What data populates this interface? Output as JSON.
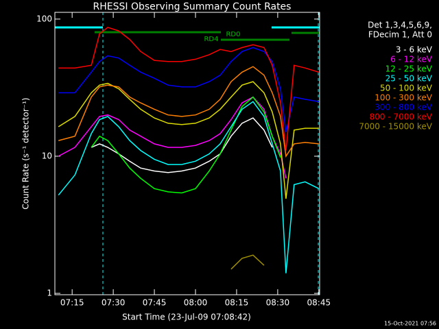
{
  "chart_data": {
    "type": "line",
    "title": "RHESSI Observing Summary Count Rates",
    "xlabel": "Start Time (23-Jul-09 07:08:42)",
    "ylabel": "Count Rate (s⁻¹ detector⁻¹)",
    "legend_header": [
      "Det 1,3,4,5,6,9,",
      "FDecim 1, Att 0"
    ],
    "footer": "15-Oct-2021 07:56",
    "annotations": [
      "RD0",
      "RD4"
    ],
    "log_y": true,
    "legend": "right",
    "x": [
      430,
      436,
      442,
      445,
      448,
      452,
      456,
      460,
      465,
      470,
      475,
      480,
      485,
      489,
      493,
      497,
      501,
      505,
      508,
      511,
      513,
      516,
      520,
      525
    ],
    "xlim": [
      428.7,
      525.3
    ],
    "xticks": [
      {
        "value": 435,
        "label": "07:15"
      },
      {
        "value": 450,
        "label": "07:30"
      },
      {
        "value": 465,
        "label": "07:45"
      },
      {
        "value": 480,
        "label": "08:00"
      },
      {
        "value": 495,
        "label": "08:15"
      },
      {
        "value": 510,
        "label": "08:30"
      },
      {
        "value": 525,
        "label": "08:45"
      }
    ],
    "ylim": [
      0.977,
      112
    ],
    "yticks": [
      1,
      10,
      100
    ],
    "series": [
      {
        "name": "3 - 6 keV",
        "color": "#ffffff",
        "values": [
          null,
          null,
          11.6,
          12.3,
          11.6,
          10.4,
          9.2,
          8.2,
          7.8,
          7.6,
          7.8,
          8.2,
          9.2,
          10.4,
          14,
          17.4,
          19,
          15.5,
          11.6,
          null,
          null,
          null,
          null,
          null
        ]
      },
      {
        "name": "6 - 12 keV",
        "color": "#ff00ff",
        "values": [
          10,
          11.6,
          16.4,
          19.5,
          20,
          18.5,
          15.5,
          14,
          12.3,
          11.6,
          11.6,
          12,
          13,
          14.6,
          18.5,
          24.5,
          27,
          22,
          14,
          10.4,
          6.9,
          null,
          null,
          null
        ]
      },
      {
        "name": "12 - 25 keV",
        "color": "#00ff00",
        "values": [
          null,
          null,
          11.6,
          14,
          13,
          10.4,
          8.2,
          6.9,
          5.8,
          5.5,
          5.4,
          5.8,
          7.8,
          10.4,
          15.5,
          23,
          27,
          21,
          14,
          9.8,
          null,
          null,
          null,
          null
        ]
      },
      {
        "name": "25 - 50 keV",
        "color": "#00ffff",
        "values": [
          5.2,
          7.3,
          14.6,
          18.5,
          19.5,
          16.4,
          13,
          11,
          9.5,
          8.7,
          8.7,
          9.2,
          10.4,
          12.3,
          16.4,
          22,
          25,
          19.5,
          12.3,
          7.8,
          1.4,
          6.2,
          6.5,
          5.8
        ]
      },
      {
        "name": "50 - 100 keV",
        "color": "#dcdc00",
        "values": [
          16.4,
          19.5,
          29,
          33,
          34,
          31,
          26,
          22,
          19,
          17.4,
          17,
          17.4,
          19,
          22,
          27,
          33,
          35,
          29,
          21,
          12.3,
          4.9,
          15.5,
          16,
          16
        ]
      },
      {
        "name": "100 - 300 keV",
        "color": "#ff8000",
        "values": [
          13,
          14,
          27,
          32,
          33,
          32,
          27,
          24.5,
          22,
          20,
          19.5,
          20,
          22,
          26,
          35,
          41,
          45,
          39,
          29,
          19.5,
          10,
          12.3,
          12.6,
          12.3
        ]
      },
      {
        "name": "300 - 800 keV",
        "color": "#0000ff",
        "values": [
          29,
          29,
          41,
          49,
          54,
          52,
          46,
          41,
          37,
          33,
          32,
          32,
          35,
          39,
          49,
          58,
          62,
          58,
          49,
          31,
          15,
          27,
          26,
          25
        ]
      },
      {
        "name": "800 - 7000 keV",
        "color": "#ff0000",
        "values": [
          44,
          44,
          46,
          78,
          87,
          82,
          71,
          58,
          50,
          49,
          49,
          51,
          55,
          60,
          58,
          62,
          65,
          62,
          46,
          24.5,
          11,
          46,
          44,
          41
        ]
      },
      {
        "name": "7000 - 15000 keV",
        "color": "#a09000",
        "values": [
          null,
          null,
          null,
          null,
          null,
          null,
          null,
          null,
          null,
          null,
          null,
          null,
          null,
          null,
          1.5,
          1.8,
          1.9,
          1.6,
          null,
          null,
          null,
          null,
          null,
          null
        ]
      }
    ]
  }
}
